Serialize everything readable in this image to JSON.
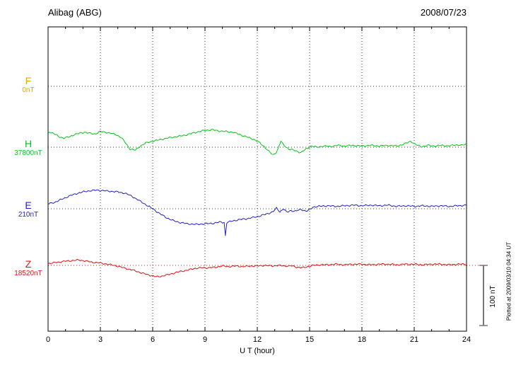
{
  "header": {
    "station": "Alibag (ABG)",
    "date": "2008/07/23"
  },
  "scale_bar": {
    "label": "100 nT",
    "nT": 100
  },
  "footer": {
    "plotted_at": "Plotted at 2009/03/10 04:34 UT"
  },
  "chart_data": {
    "type": "line",
    "title": "Alibag (ABG)",
    "subtitle": "2008/07/23",
    "xlabel": "U T (hour)",
    "x_range": [
      0,
      24
    ],
    "x_ticks": [
      0,
      3,
      6,
      9,
      12,
      15,
      18,
      21,
      24
    ],
    "grid": "dotted",
    "scale_nT_per_bar": 100,
    "series": [
      {
        "name": "F",
        "baseline_nT": "0nT",
        "color": "#f0a000",
        "has_data": false,
        "points": [
          [
            0,
            0
          ],
          [
            24,
            0
          ]
        ]
      },
      {
        "name": "H",
        "baseline_nT": "37800nT",
        "color": "#00c814",
        "has_data": true,
        "points": [
          [
            0,
            26
          ],
          [
            0.3,
            23
          ],
          [
            0.6,
            18
          ],
          [
            0.9,
            15
          ],
          [
            1.2,
            17
          ],
          [
            1.5,
            21
          ],
          [
            1.8,
            23
          ],
          [
            2.1,
            25
          ],
          [
            2.4,
            23
          ],
          [
            2.7,
            22
          ],
          [
            3,
            26
          ],
          [
            3.3,
            25
          ],
          [
            3.6,
            23
          ],
          [
            3.9,
            21
          ],
          [
            4.2,
            16
          ],
          [
            4.5,
            5
          ],
          [
            4.7,
            -3
          ],
          [
            5,
            -5
          ],
          [
            5.3,
            2
          ],
          [
            5.6,
            7
          ],
          [
            6,
            10
          ],
          [
            6.5,
            13
          ],
          [
            7,
            16
          ],
          [
            7.5,
            18
          ],
          [
            8,
            21
          ],
          [
            8.5,
            25
          ],
          [
            9,
            28
          ],
          [
            9.4,
            29
          ],
          [
            9.8,
            27
          ],
          [
            10.2,
            26
          ],
          [
            10.6,
            25
          ],
          [
            11,
            21
          ],
          [
            11.4,
            17
          ],
          [
            11.8,
            13
          ],
          [
            12.1,
            8
          ],
          [
            12.4,
            1
          ],
          [
            12.7,
            -8
          ],
          [
            12.9,
            -13
          ],
          [
            13.1,
            -8
          ],
          [
            13.2,
            -2
          ],
          [
            13.35,
            10
          ],
          [
            13.5,
            4
          ],
          [
            13.8,
            -3
          ],
          [
            14.1,
            -5
          ],
          [
            14.5,
            -9
          ],
          [
            14.8,
            -3
          ],
          [
            15.1,
            2
          ],
          [
            15.4,
            0
          ],
          [
            15.8,
            2
          ],
          [
            16.2,
            1
          ],
          [
            16.6,
            3
          ],
          [
            17,
            2
          ],
          [
            17.5,
            3
          ],
          [
            18,
            2
          ],
          [
            18.5,
            3
          ],
          [
            19,
            2
          ],
          [
            19.5,
            3
          ],
          [
            20,
            2
          ],
          [
            20.4,
            5
          ],
          [
            20.8,
            10
          ],
          [
            21.1,
            4
          ],
          [
            21.4,
            1
          ],
          [
            21.8,
            3
          ],
          [
            22.2,
            2
          ],
          [
            22.6,
            3
          ],
          [
            23,
            2
          ],
          [
            23.4,
            4
          ],
          [
            23.7,
            3
          ],
          [
            24,
            5
          ]
        ]
      },
      {
        "name": "E",
        "baseline_nT": "210nT",
        "color": "#2222cc",
        "has_data": true,
        "points": [
          [
            0,
            8
          ],
          [
            0.4,
            11
          ],
          [
            0.8,
            16
          ],
          [
            1.2,
            21
          ],
          [
            1.6,
            25
          ],
          [
            2,
            28
          ],
          [
            2.4,
            30
          ],
          [
            2.8,
            31
          ],
          [
            3.2,
            30
          ],
          [
            3.6,
            29
          ],
          [
            4,
            28
          ],
          [
            4.4,
            26
          ],
          [
            4.8,
            21
          ],
          [
            5.2,
            14
          ],
          [
            5.6,
            7
          ],
          [
            6,
            0
          ],
          [
            6.4,
            -8
          ],
          [
            6.8,
            -15
          ],
          [
            7.2,
            -20
          ],
          [
            7.6,
            -23
          ],
          [
            8,
            -25
          ],
          [
            8.5,
            -26
          ],
          [
            9,
            -25
          ],
          [
            9.5,
            -24
          ],
          [
            9.9,
            -22
          ],
          [
            10.1,
            -23
          ],
          [
            10.17,
            -45
          ],
          [
            10.25,
            -23
          ],
          [
            10.6,
            -20
          ],
          [
            11,
            -18
          ],
          [
            11.5,
            -16
          ],
          [
            12,
            -13
          ],
          [
            12.5,
            -9
          ],
          [
            12.9,
            -5
          ],
          [
            13.1,
            1
          ],
          [
            13.3,
            -5
          ],
          [
            13.5,
            0
          ],
          [
            13.7,
            -6
          ],
          [
            13.9,
            -3
          ],
          [
            14.2,
            -4
          ],
          [
            14.5,
            -1
          ],
          [
            14.8,
            -4
          ],
          [
            15,
            -2
          ],
          [
            15.2,
            3
          ],
          [
            15.5,
            4
          ],
          [
            16,
            5
          ],
          [
            16.5,
            4
          ],
          [
            17,
            5
          ],
          [
            17.5,
            6
          ],
          [
            18,
            5
          ],
          [
            18.5,
            6
          ],
          [
            19,
            5
          ],
          [
            19.5,
            6
          ],
          [
            20,
            4
          ],
          [
            20.5,
            5
          ],
          [
            21,
            4
          ],
          [
            21.5,
            5
          ],
          [
            22,
            4
          ],
          [
            22.5,
            5
          ],
          [
            23,
            4
          ],
          [
            23.5,
            5
          ],
          [
            24,
            6
          ]
        ]
      },
      {
        "name": "Z",
        "baseline_nT": "18520nT",
        "color": "#e41010",
        "has_data": true,
        "points": [
          [
            0,
            3
          ],
          [
            0.5,
            5
          ],
          [
            1,
            7
          ],
          [
            1.4,
            8
          ],
          [
            1.8,
            9
          ],
          [
            2.2,
            7
          ],
          [
            2.6,
            5
          ],
          [
            3,
            4
          ],
          [
            3.4,
            2
          ],
          [
            3.8,
            0
          ],
          [
            4.2,
            -3
          ],
          [
            4.6,
            -6
          ],
          [
            5,
            -9
          ],
          [
            5.4,
            -13
          ],
          [
            5.8,
            -16
          ],
          [
            6.2,
            -19
          ],
          [
            6.5,
            -18
          ],
          [
            6.8,
            -16
          ],
          [
            7.2,
            -13
          ],
          [
            7.6,
            -10
          ],
          [
            8,
            -8
          ],
          [
            8.4,
            -5
          ],
          [
            8.8,
            -4
          ],
          [
            9.2,
            -4
          ],
          [
            9.6,
            -3
          ],
          [
            10,
            -1
          ],
          [
            10.4,
            -2
          ],
          [
            10.8,
            -1
          ],
          [
            11.2,
            -2
          ],
          [
            11.6,
            -1
          ],
          [
            12,
            -1
          ],
          [
            12.4,
            0
          ],
          [
            12.8,
            -1
          ],
          [
            13.2,
            0
          ],
          [
            13.6,
            -1
          ],
          [
            14,
            -1
          ],
          [
            14.3,
            -3
          ],
          [
            14.6,
            -4
          ],
          [
            14.9,
            -2
          ],
          [
            15.2,
            0
          ],
          [
            15.6,
            1
          ],
          [
            16,
            1
          ],
          [
            16.5,
            2
          ],
          [
            17,
            1
          ],
          [
            17.5,
            2
          ],
          [
            18,
            2
          ],
          [
            18.5,
            1
          ],
          [
            19,
            2
          ],
          [
            19.5,
            2
          ],
          [
            20,
            1
          ],
          [
            20.5,
            2
          ],
          [
            21,
            2
          ],
          [
            21.5,
            1
          ],
          [
            22,
            2
          ],
          [
            22.5,
            2
          ],
          [
            23,
            1
          ],
          [
            23.5,
            2
          ],
          [
            24,
            2
          ]
        ]
      }
    ]
  }
}
